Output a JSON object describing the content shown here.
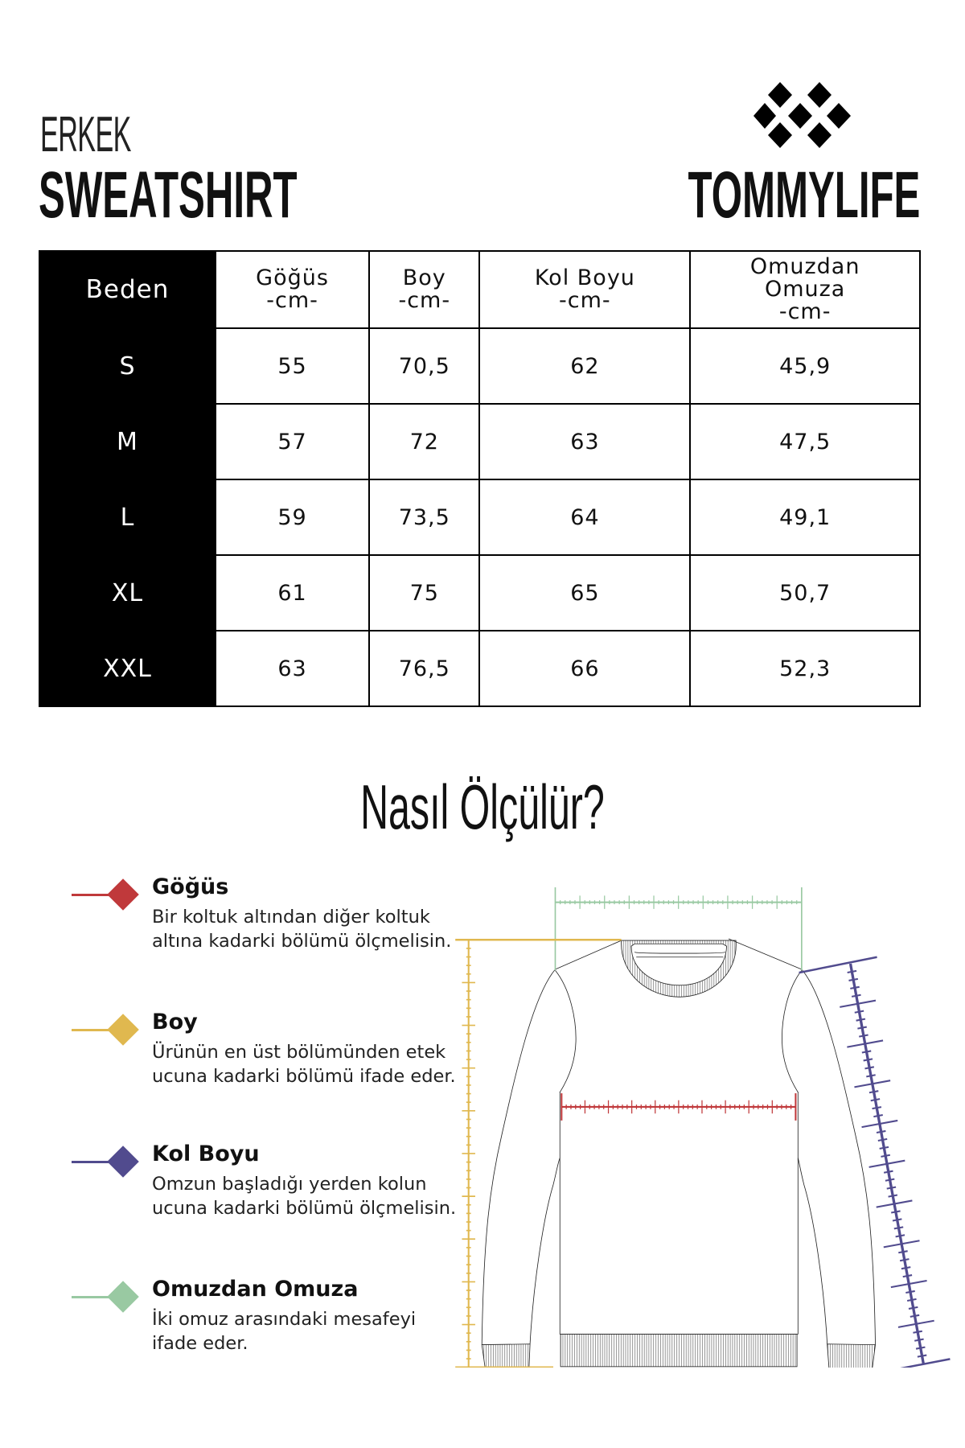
{
  "header": {
    "title_top": "ERKEK",
    "title_main": "SWEATSHIRT",
    "brand": "TOMMYLIFE"
  },
  "table": {
    "columns": [
      {
        "label": "Beden",
        "unit": ""
      },
      {
        "label": "Göğüs",
        "unit": "-cm-"
      },
      {
        "label": "Boy",
        "unit": "-cm-"
      },
      {
        "label": "Kol Boyu",
        "unit": "-cm-"
      },
      {
        "label": "Omuzdan Omuza",
        "label_line1": "Omuzdan",
        "label_line2": "Omuza",
        "unit": "-cm-"
      }
    ],
    "rows": [
      [
        "S",
        "55",
        "70,5",
        "62",
        "45,9"
      ],
      [
        "M",
        "57",
        "72",
        "63",
        "47,5"
      ],
      [
        "L",
        "59",
        "73,5",
        "64",
        "49,1"
      ],
      [
        "XL",
        "61",
        "75",
        "65",
        "50,7"
      ],
      [
        "XXL",
        "63",
        "76,5",
        "66",
        "52,3"
      ]
    ]
  },
  "guide": {
    "title": "Nasıl Ölçülür?",
    "items": [
      {
        "title": "Göğüs",
        "desc": "Bir koltuk altından diğer koltuk altına kadarki bölümü ölçmelisin.",
        "color": "#c0393b"
      },
      {
        "title": "Boy",
        "desc": "Ürünün en üst bölümünden etek ucuna kadarki bölümü ifade eder.",
        "color": "#e0b84f"
      },
      {
        "title": "Kol Boyu",
        "desc": "Omzun başladığı yerden kolun ucuna kadarki bölümü ölçmelisin.",
        "color": "#514b8e"
      },
      {
        "title": "Omuzdan Omuza",
        "desc": "İki omuz arasındaki mesafeyi ifade eder.",
        "color": "#99c9a2"
      }
    ]
  }
}
